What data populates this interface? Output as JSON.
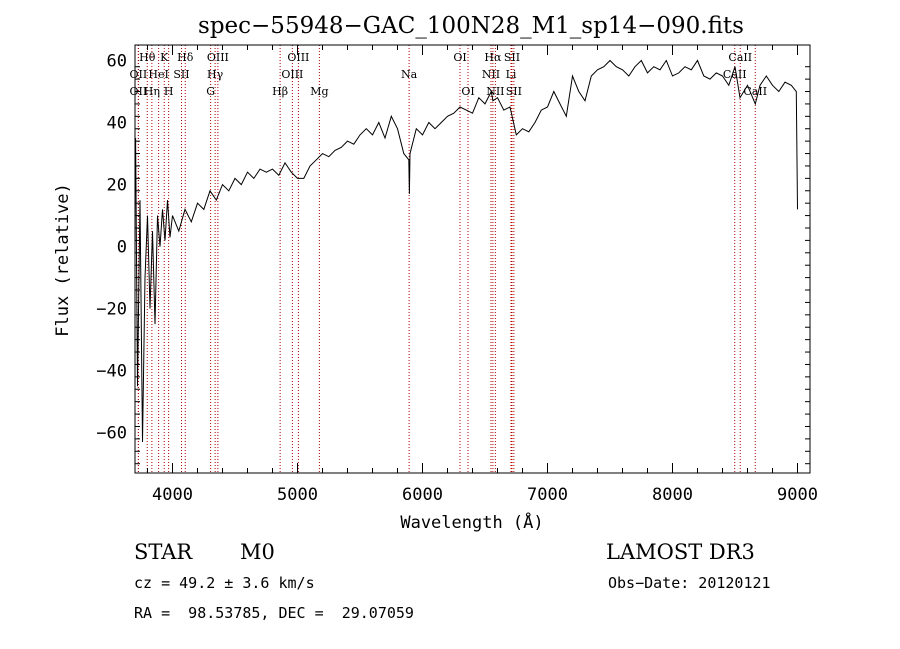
{
  "chart_data": {
    "type": "line",
    "title": "spec−55948−GAC_100N28_M1_sp14−090.fits",
    "xlabel": "Wavelength (Å)",
    "ylabel": "Flux (relative)",
    "xlim": [
      3700,
      9100
    ],
    "ylim": [
      -73,
      65
    ],
    "xticks": [
      4000,
      5000,
      6000,
      7000,
      8000,
      9000
    ],
    "yticks": [
      -60,
      -40,
      -20,
      0,
      20,
      40,
      60
    ],
    "ytick_labels": [
      "−60",
      "−40",
      "−20",
      "0",
      "20",
      "40",
      "60"
    ],
    "spectrum": {
      "wavelength": [
        3705,
        3720,
        3740,
        3760,
        3780,
        3800,
        3820,
        3840,
        3860,
        3880,
        3900,
        3920,
        3940,
        3960,
        3980,
        4000,
        4050,
        4100,
        4150,
        4200,
        4250,
        4300,
        4350,
        4400,
        4450,
        4500,
        4550,
        4600,
        4650,
        4700,
        4750,
        4800,
        4850,
        4900,
        4950,
        5000,
        5050,
        5100,
        5150,
        5200,
        5250,
        5300,
        5350,
        5400,
        5450,
        5500,
        5550,
        5600,
        5650,
        5700,
        5750,
        5800,
        5850,
        5890,
        5895,
        5900,
        5950,
        6000,
        6050,
        6100,
        6150,
        6200,
        6250,
        6300,
        6350,
        6400,
        6450,
        6500,
        6550,
        6563,
        6600,
        6650,
        6700,
        6750,
        6800,
        6850,
        6900,
        6950,
        7000,
        7050,
        7100,
        7150,
        7200,
        7250,
        7300,
        7350,
        7400,
        7450,
        7500,
        7550,
        7600,
        7650,
        7700,
        7750,
        7800,
        7850,
        7900,
        7950,
        8000,
        8050,
        8100,
        8150,
        8200,
        8250,
        8300,
        8350,
        8400,
        8450,
        8500,
        8540,
        8600,
        8662,
        8700,
        8750,
        8800,
        8850,
        8900,
        8950,
        8990,
        9000
      ],
      "flux": [
        35,
        -45,
        15,
        -63,
        -10,
        10,
        -20,
        5,
        -25,
        10,
        0,
        12,
        2,
        15,
        3,
        10,
        5,
        12,
        8,
        14,
        12,
        18,
        15,
        20,
        18,
        22,
        20,
        24,
        22,
        25,
        24,
        25,
        23,
        27,
        24,
        22,
        22,
        26,
        28,
        30,
        29,
        31,
        32,
        34,
        33,
        36,
        38,
        36,
        40,
        35,
        42,
        38,
        30,
        28,
        17,
        30,
        38,
        36,
        40,
        38,
        40,
        42,
        43,
        45,
        44,
        43,
        48,
        46,
        50,
        47,
        48,
        44,
        45,
        36,
        38,
        37,
        40,
        44,
        45,
        50,
        46,
        42,
        55,
        50,
        47,
        55,
        57,
        58,
        60,
        58,
        57,
        55,
        58,
        60,
        56,
        58,
        57,
        60,
        55,
        56,
        58,
        57,
        60,
        55,
        54,
        56,
        55,
        52,
        58,
        48,
        52,
        46,
        52,
        55,
        52,
        50,
        53,
        52,
        50,
        12
      ]
    },
    "lines": [
      {
        "name": "Hθ",
        "wavelength": 3798,
        "row": 1
      },
      {
        "name": "K",
        "wavelength": 3934,
        "row": 1
      },
      {
        "name": "Hδ",
        "wavelength": 4102,
        "row": 1
      },
      {
        "name": "OII",
        "wavelength": 3727,
        "row": 2
      },
      {
        "name": "HeI",
        "wavelength": 3889,
        "row": 2
      },
      {
        "name": "SII",
        "wavelength": 4072,
        "row": 2
      },
      {
        "name": "OII",
        "wavelength": 3727,
        "row": 3
      },
      {
        "name": "Hη",
        "wavelength": 3835,
        "row": 3
      },
      {
        "name": "H",
        "wavelength": 3969,
        "row": 3
      },
      {
        "name": "OIII",
        "wavelength": 4363,
        "row": 1
      },
      {
        "name": "Hγ",
        "wavelength": 4341,
        "row": 2
      },
      {
        "name": "G",
        "wavelength": 4305,
        "row": 3
      },
      {
        "name": "OIII",
        "wavelength": 5007,
        "row": 1
      },
      {
        "name": "OIII",
        "wavelength": 4959,
        "row": 2
      },
      {
        "name": "Hβ",
        "wavelength": 4861,
        "row": 3
      },
      {
        "name": "Mg",
        "wavelength": 5175,
        "row": 3
      },
      {
        "name": "Na",
        "wavelength": 5893,
        "row": 2
      },
      {
        "name": "OI",
        "wavelength": 6300,
        "row": 1
      },
      {
        "name": "OI",
        "wavelength": 6364,
        "row": 3
      },
      {
        "name": "Hα",
        "wavelength": 6563,
        "row": 1
      },
      {
        "name": "SII",
        "wavelength": 6716,
        "row": 1
      },
      {
        "name": "NII",
        "wavelength": 6548,
        "row": 2
      },
      {
        "name": "Li",
        "wavelength": 6708,
        "row": 2
      },
      {
        "name": "NII",
        "wavelength": 6583,
        "row": 3
      },
      {
        "name": "SII",
        "wavelength": 6731,
        "row": 3
      },
      {
        "name": "CaII",
        "wavelength": 8542,
        "row": 1
      },
      {
        "name": "CaII",
        "wavelength": 8498,
        "row": 2
      },
      {
        "name": "CaII",
        "wavelength": 8662,
        "row": 3
      }
    ]
  },
  "info": {
    "class": "STAR",
    "subclass": "M0",
    "survey": "LAMOST DR3",
    "cz": "cz = 49.2 ± 3.6 km/s",
    "obs_date": "Obs−Date: 20120121",
    "coords": "RA =  98.53785, DEC =  29.07059"
  }
}
